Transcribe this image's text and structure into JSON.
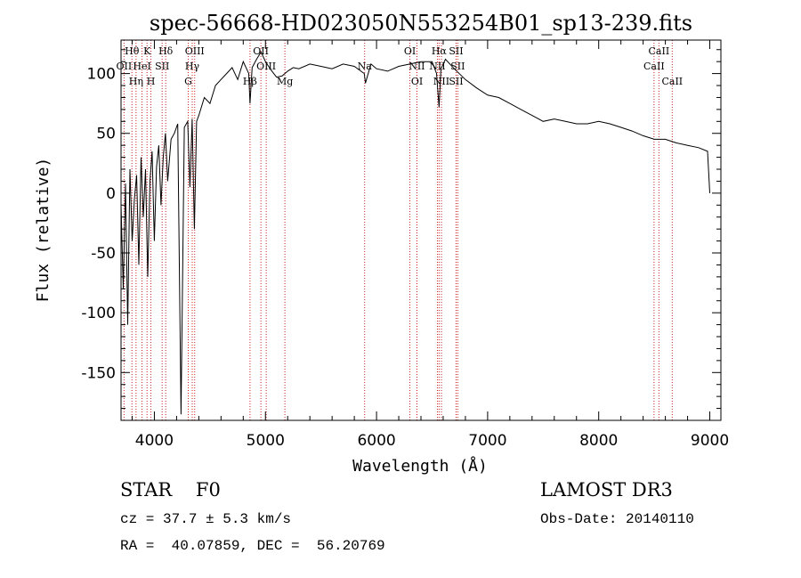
{
  "chart_data": {
    "type": "line",
    "title": "spec-56668-HD023050N553254B01_sp13-239.fits",
    "xlabel": "Wavelength (Å)",
    "ylabel": "Flux (relative)",
    "xlim": [
      3700,
      9100
    ],
    "ylim": [
      -190,
      128
    ],
    "xticks": [
      {
        "value": 4000,
        "label": "4000"
      },
      {
        "value": 5000,
        "label": "5000"
      },
      {
        "value": 6000,
        "label": "6000"
      },
      {
        "value": 7000,
        "label": "7000"
      },
      {
        "value": 8000,
        "label": "8000"
      },
      {
        "value": 9000,
        "label": "9000"
      }
    ],
    "yticks": [
      {
        "value": 100,
        "label": "100"
      },
      {
        "value": 50,
        "label": "50"
      },
      {
        "value": 0,
        "label": "0"
      },
      {
        "value": -50,
        "label": "-50"
      },
      {
        "value": -100,
        "label": "-100"
      },
      {
        "value": -150,
        "label": "-150"
      }
    ],
    "series": [
      {
        "name": "flux",
        "x": [
          3700,
          3720,
          3740,
          3760,
          3780,
          3800,
          3820,
          3840,
          3860,
          3880,
          3900,
          3920,
          3940,
          3960,
          3980,
          4000,
          4020,
          4040,
          4060,
          4080,
          4100,
          4120,
          4150,
          4180,
          4210,
          4240,
          4270,
          4300,
          4320,
          4340,
          4360,
          4380,
          4400,
          4450,
          4500,
          4550,
          4600,
          4650,
          4700,
          4750,
          4800,
          4850,
          4861,
          4880,
          4920,
          4960,
          5000,
          5050,
          5100,
          5150,
          5200,
          5250,
          5300,
          5400,
          5500,
          5600,
          5700,
          5800,
          5890,
          5900,
          5950,
          6000,
          6100,
          6200,
          6300,
          6400,
          6500,
          6540,
          6563,
          6580,
          6620,
          6700,
          6800,
          6900,
          7000,
          7100,
          7200,
          7300,
          7400,
          7500,
          7600,
          7700,
          7800,
          7900,
          8000,
          8100,
          8200,
          8300,
          8400,
          8500,
          8600,
          8700,
          8800,
          8900,
          8980,
          9000
        ],
        "values": [
          -10,
          -80,
          8,
          -110,
          20,
          -40,
          -5,
          15,
          -60,
          30,
          -20,
          20,
          -70,
          10,
          35,
          -40,
          22,
          40,
          -10,
          30,
          50,
          10,
          45,
          50,
          58,
          -185,
          55,
          60,
          5,
          62,
          -30,
          60,
          65,
          80,
          75,
          90,
          95,
          100,
          105,
          95,
          110,
          100,
          75,
          105,
          112,
          118,
          110,
          103,
          97,
          98,
          102,
          105,
          104,
          108,
          106,
          104,
          108,
          106,
          100,
          92,
          108,
          104,
          102,
          106,
          108,
          110,
          110,
          100,
          72,
          104,
          112,
          104,
          95,
          88,
          82,
          80,
          75,
          70,
          65,
          60,
          62,
          60,
          58,
          58,
          60,
          58,
          55,
          52,
          48,
          45,
          45,
          42,
          40,
          38,
          35,
          0
        ]
      }
    ],
    "lines": [
      {
        "label": "Hθ",
        "x": 3798,
        "row": 0
      },
      {
        "label": "OII",
        "x": 3727,
        "row": 1
      },
      {
        "label": "Hη",
        "x": 3835,
        "row": 2
      },
      {
        "label": "K",
        "x": 3934,
        "row": 0
      },
      {
        "label": "H",
        "x": 3969,
        "row": 2
      },
      {
        "label": "HeI",
        "x": 3889,
        "row": 1
      },
      {
        "label": "SII",
        "x": 4070,
        "row": 1
      },
      {
        "label": "Hδ",
        "x": 4102,
        "row": 0
      },
      {
        "label": "OIII",
        "x": 4363,
        "row": 0
      },
      {
        "label": "Hγ",
        "x": 4341,
        "row": 1
      },
      {
        "label": "G",
        "x": 4305,
        "row": 2
      },
      {
        "label": "OII",
        "x": 4959,
        "row": 0
      },
      {
        "label": "OIII",
        "x": 5007,
        "row": 1
      },
      {
        "label": "Hβ",
        "x": 4861,
        "row": 2
      },
      {
        "label": "Mg",
        "x": 5175,
        "row": 2
      },
      {
        "label": "Na",
        "x": 5893,
        "row": 1
      },
      {
        "label": "OI",
        "x": 6300,
        "row": 0
      },
      {
        "label": "NII",
        "x": 6363,
        "row": 1
      },
      {
        "label": "OI",
        "x": 6364,
        "row": 2
      },
      {
        "label": "Hα",
        "x": 6563,
        "row": 0
      },
      {
        "label": "SII",
        "x": 6716,
        "row": 0
      },
      {
        "label": "NII",
        "x": 6548,
        "row": 1
      },
      {
        "label": "SII",
        "x": 6731,
        "row": 1
      },
      {
        "label": "NII",
        "x": 6584,
        "row": 2
      },
      {
        "label": "SII",
        "x": 6716,
        "row": 2
      },
      {
        "label": "CaII",
        "x": 8542,
        "row": 0
      },
      {
        "label": "CaII",
        "x": 8498,
        "row": 1
      },
      {
        "label": "CaII",
        "x": 8662,
        "row": 2
      }
    ]
  },
  "info": {
    "object_class": "STAR    F0",
    "survey": "LAMOST DR3",
    "redshift": "cz = 37.7 ± 5.3 km/s",
    "obs_date": "Obs-Date: 20140110",
    "coords": "RA =  40.07859, DEC =  56.20769"
  }
}
